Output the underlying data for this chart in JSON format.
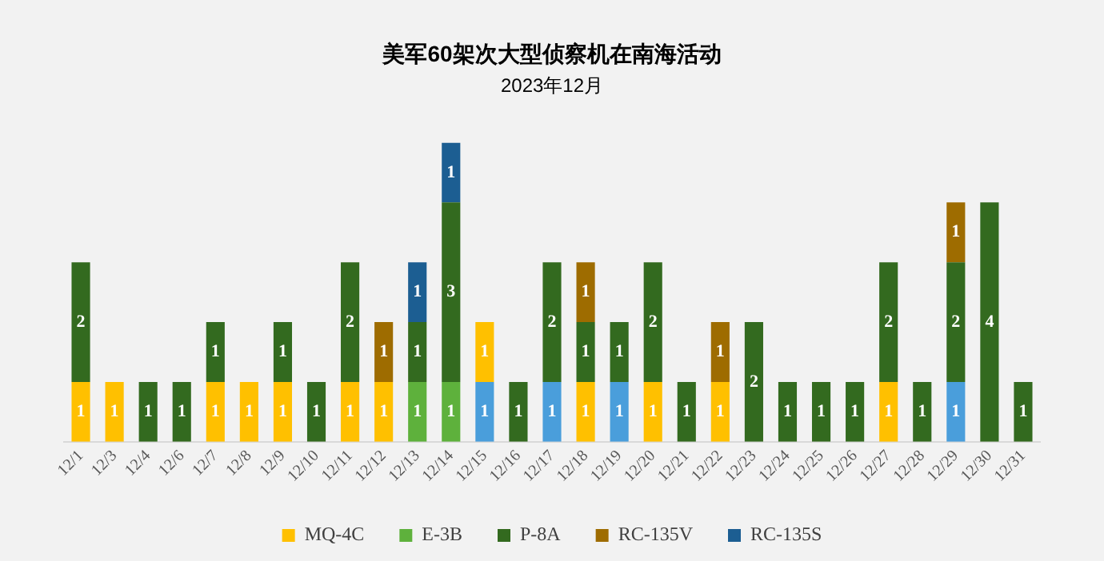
{
  "chart_data": {
    "type": "bar",
    "title": "美军60架次大型侦察机在南海活动",
    "subtitle": "2023年12月",
    "categories": [
      "12/1",
      "12/3",
      "12/4",
      "12/6",
      "12/7",
      "12/8",
      "12/9",
      "12/10",
      "12/11",
      "12/12",
      "12/13",
      "12/14",
      "12/15",
      "12/16",
      "12/17",
      "12/18",
      "12/19",
      "12/20",
      "12/21",
      "12/22",
      "12/23",
      "12/24",
      "12/25",
      "12/26",
      "12/27",
      "12/28",
      "12/29",
      "12/30",
      "12/31"
    ],
    "stacked": true,
    "data_labels": true,
    "legend": "bottom",
    "grid": false,
    "tick_labels": "x",
    "ylim": [
      0,
      5
    ],
    "series": [
      {
        "color": "#4a9edb",
        "values": [
          null,
          null,
          null,
          null,
          null,
          null,
          null,
          null,
          null,
          null,
          null,
          null,
          1,
          null,
          1,
          null,
          1,
          null,
          null,
          null,
          null,
          null,
          null,
          null,
          null,
          null,
          1,
          null,
          null
        ]
      },
      {
        "name": "MQ-4C",
        "color": "#ffc000",
        "values": [
          1,
          1,
          null,
          null,
          1,
          1,
          1,
          null,
          1,
          1,
          null,
          null,
          1,
          null,
          null,
          1,
          null,
          1,
          null,
          1,
          null,
          null,
          null,
          null,
          1,
          null,
          null,
          null,
          null
        ]
      },
      {
        "name": "E-3B",
        "color": "#5eb13c",
        "values": [
          null,
          null,
          null,
          null,
          null,
          null,
          null,
          null,
          null,
          null,
          1,
          1,
          null,
          null,
          null,
          null,
          null,
          null,
          null,
          null,
          null,
          null,
          null,
          null,
          null,
          null,
          null,
          null,
          null
        ]
      },
      {
        "name": "P-8A",
        "color": "#336a1f",
        "values": [
          2,
          null,
          1,
          1,
          1,
          null,
          1,
          1,
          2,
          null,
          1,
          3,
          null,
          1,
          2,
          1,
          1,
          2,
          1,
          null,
          2,
          1,
          1,
          1,
          2,
          1,
          2,
          4,
          1
        ]
      },
      {
        "name": "RC-135V",
        "color": "#9e6c00",
        "values": [
          null,
          null,
          null,
          null,
          null,
          null,
          null,
          null,
          null,
          1,
          null,
          null,
          null,
          null,
          null,
          1,
          null,
          null,
          null,
          1,
          null,
          null,
          null,
          null,
          null,
          null,
          1,
          null,
          null
        ]
      },
      {
        "name": "RC-135S",
        "color": "#1c5e92",
        "values": [
          null,
          null,
          null,
          null,
          null,
          null,
          null,
          null,
          null,
          null,
          1,
          1,
          null,
          null,
          null,
          null,
          null,
          null,
          null,
          null,
          null,
          null,
          null,
          null,
          null,
          null,
          null,
          null,
          null
        ]
      }
    ]
  }
}
